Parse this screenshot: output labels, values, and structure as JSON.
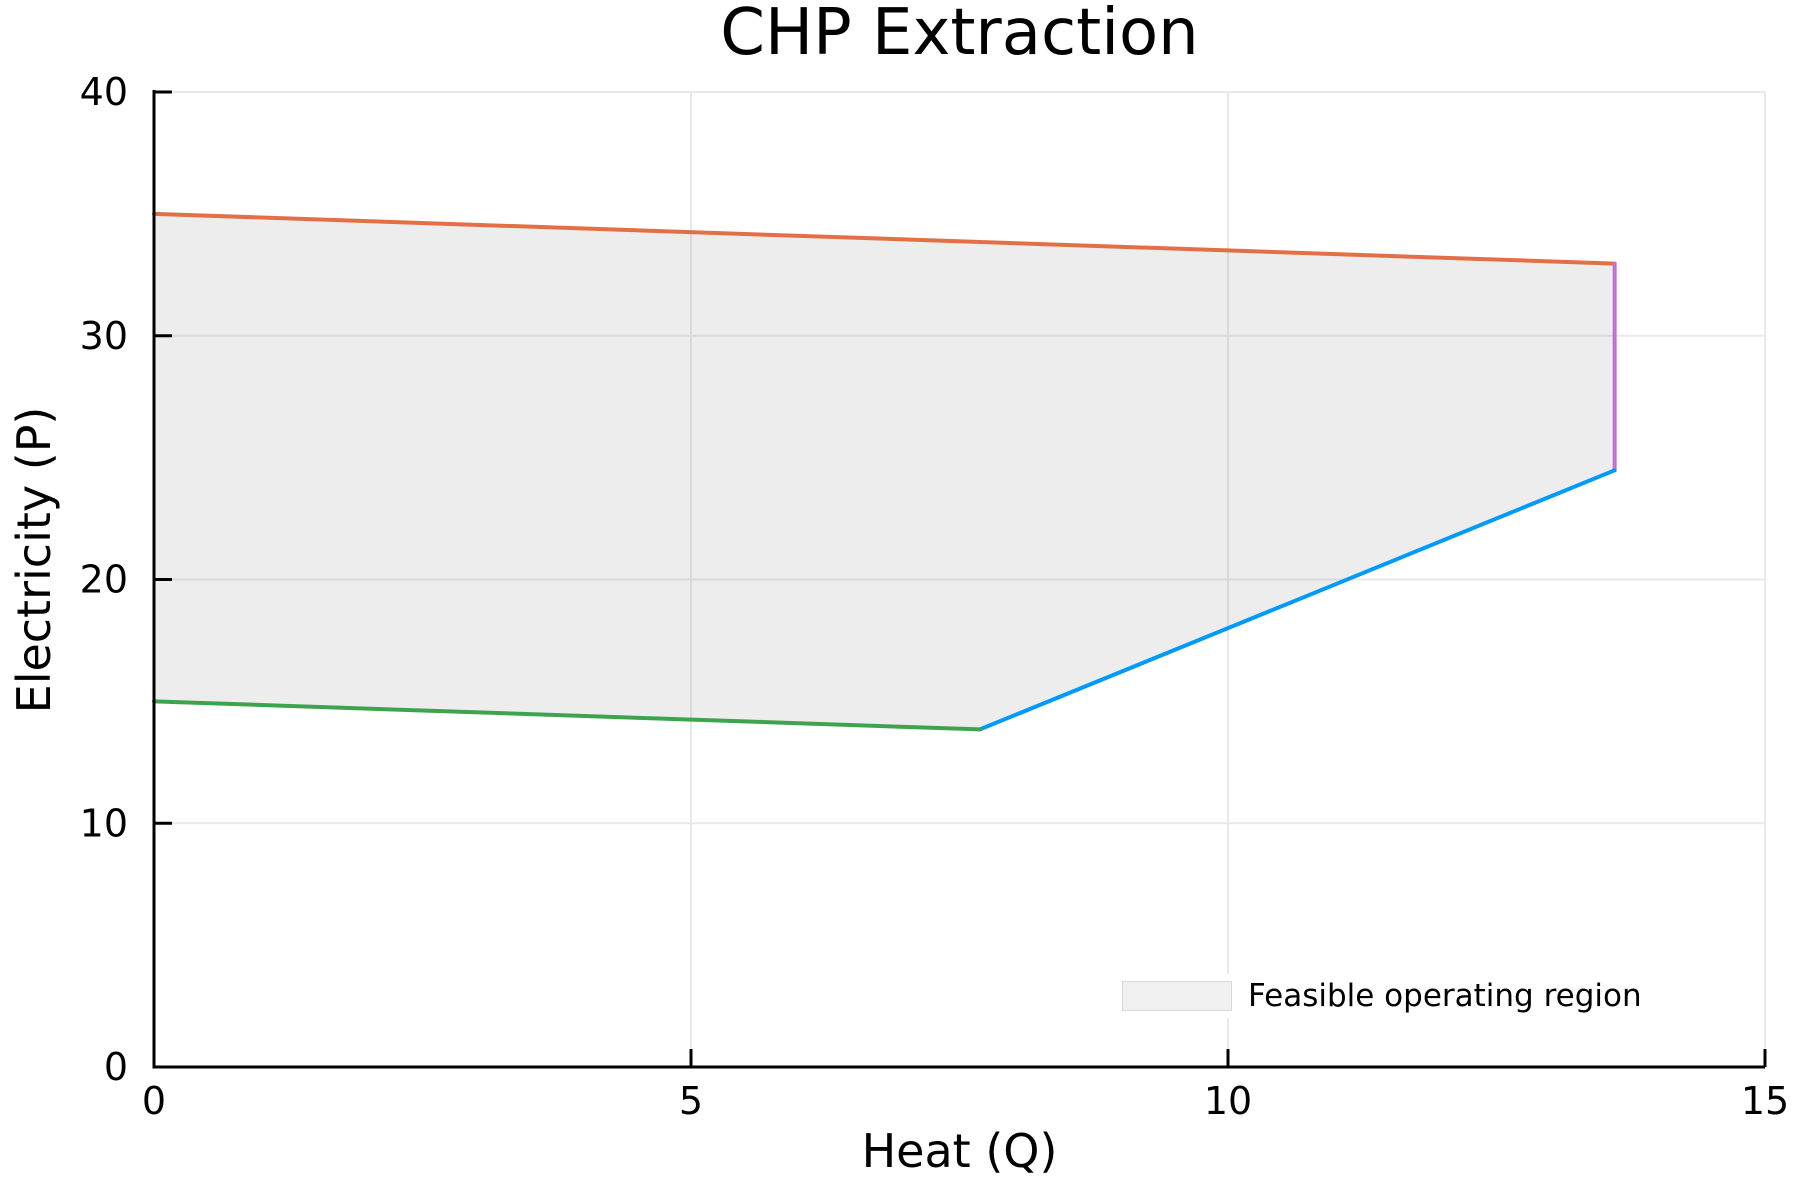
{
  "chart_data": {
    "type": "area",
    "title": "CHP Extraction",
    "xlabel": "Heat (Q)",
    "ylabel": "Electricity (P)",
    "xlim": [
      0,
      15
    ],
    "ylim": [
      0,
      40
    ],
    "xticks": [
      0,
      5,
      10,
      15
    ],
    "yticks": [
      0,
      10,
      20,
      30,
      40
    ],
    "grid": true,
    "region": {
      "label": "Feasible operating region",
      "fill_color": "#f0f0f0",
      "fill_rgba": "rgba(110,110,110,0.12)",
      "vertices_qp": [
        [
          0,
          35
        ],
        [
          13.6,
          32.96
        ],
        [
          13.6,
          24.48
        ],
        [
          7.69,
          13.85
        ],
        [
          0,
          15
        ]
      ]
    },
    "boundaries": [
      {
        "name": "max-fuel-boundary-line",
        "color": "#e26f46",
        "points_qp": [
          [
            0,
            35
          ],
          [
            13.6,
            32.96
          ]
        ]
      },
      {
        "name": "max-heat-boundary-line",
        "color": "#c271d2",
        "points_qp": [
          [
            13.6,
            32.96
          ],
          [
            13.6,
            24.48
          ]
        ]
      },
      {
        "name": "back-pressure-boundary-line",
        "color": "#009afa",
        "points_qp": [
          [
            13.6,
            24.48
          ],
          [
            7.69,
            13.85
          ]
        ]
      },
      {
        "name": "min-fuel-boundary-line",
        "color": "#3da44d",
        "points_qp": [
          [
            7.69,
            13.85
          ],
          [
            0,
            15
          ]
        ]
      }
    ],
    "legend": {
      "position": "bottom-right",
      "entries": [
        {
          "label": "Feasible operating region",
          "swatch_color": "#f0f0f0"
        }
      ]
    },
    "colors": {
      "axis": "#000000",
      "grid": "#e9e9e9",
      "text": "#000000"
    }
  }
}
